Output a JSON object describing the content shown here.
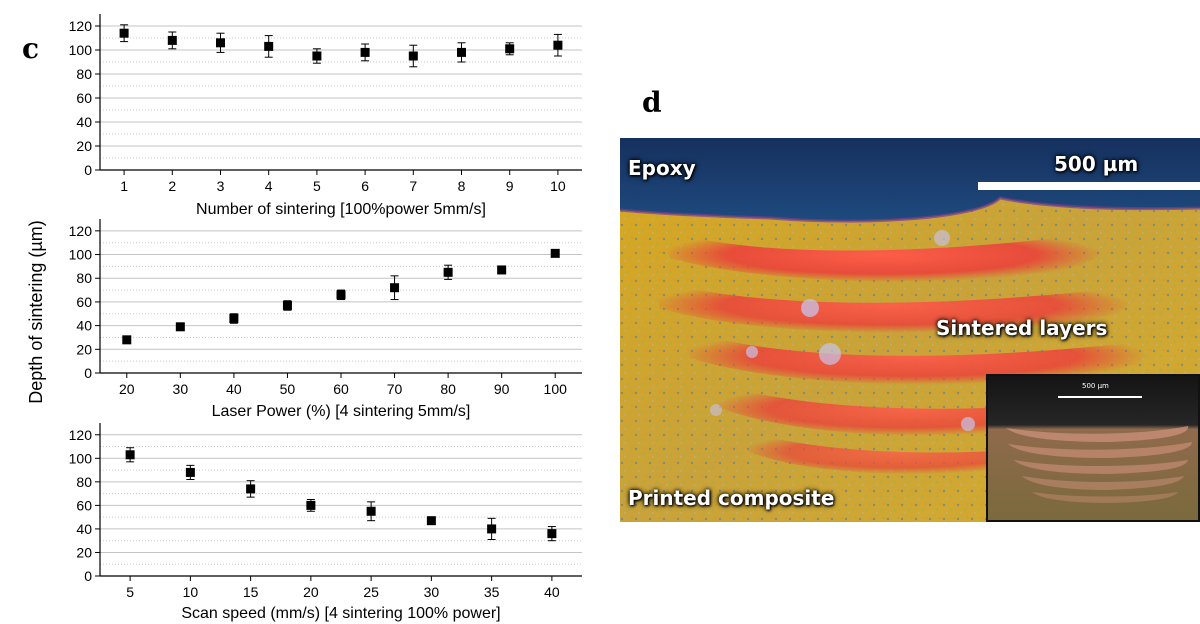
{
  "figure": {
    "panel_c_letter": "c",
    "panel_d_letter": "d",
    "shared_ylabel": "Depth of sintering (µm)"
  },
  "chart_data": [
    {
      "type": "scatter",
      "title": "",
      "xlabel": "Number of sintering [100%power 5mm/s]",
      "ylabel": "Depth of sintering (µm)",
      "x": [
        1,
        2,
        3,
        4,
        5,
        6,
        7,
        8,
        9,
        10
      ],
      "y": [
        114,
        108,
        106,
        103,
        95,
        98,
        95,
        98,
        101,
        104
      ],
      "error": [
        7,
        7,
        8,
        9,
        6,
        7,
        9,
        8,
        5,
        9
      ],
      "xticks": [
        "1",
        "2",
        "3",
        "4",
        "5",
        "6",
        "7",
        "8",
        "9",
        "10"
      ],
      "yticks": [
        "0",
        "20",
        "40",
        "60",
        "80",
        "100",
        "120"
      ],
      "ylim": [
        0,
        130
      ],
      "grid": true
    },
    {
      "type": "scatter",
      "title": "",
      "xlabel": "Laser Power (%) [4 sintering 5mm/s]",
      "ylabel": "Depth of sintering (µm)",
      "x": [
        20,
        30,
        40,
        50,
        60,
        70,
        80,
        90,
        100
      ],
      "y": [
        28,
        39,
        46,
        57,
        66,
        72,
        85,
        87,
        101
      ],
      "error": [
        2,
        3,
        4,
        4,
        4,
        10,
        6,
        2,
        2
      ],
      "xticks": [
        "20",
        "30",
        "40",
        "50",
        "60",
        "70",
        "80",
        "90",
        "100"
      ],
      "yticks": [
        "0",
        "20",
        "40",
        "60",
        "80",
        "100",
        "120"
      ],
      "ylim": [
        0,
        130
      ],
      "grid": true
    },
    {
      "type": "scatter",
      "title": "",
      "xlabel": "Scan speed (mm/s) [4 sintering 100% power]",
      "ylabel": "Depth of sintering (µm)",
      "x": [
        5,
        10,
        15,
        20,
        25,
        30,
        35,
        40
      ],
      "y": [
        103,
        88,
        74,
        60,
        55,
        47,
        40,
        36
      ],
      "error": [
        6,
        6,
        7,
        5,
        8,
        2,
        9,
        6
      ],
      "xticks": [
        "5",
        "10",
        "15",
        "20",
        "25",
        "30",
        "35",
        "40"
      ],
      "yticks": [
        "0",
        "20",
        "40",
        "60",
        "80",
        "100",
        "120"
      ],
      "ylim": [
        0,
        130
      ],
      "grid": true
    }
  ],
  "micrograph": {
    "label_epoxy": "Epoxy",
    "label_scale": "500 µm",
    "label_sintered": "Sintered layers",
    "label_printed": "Printed composite",
    "inset_scale": "500 µm"
  }
}
